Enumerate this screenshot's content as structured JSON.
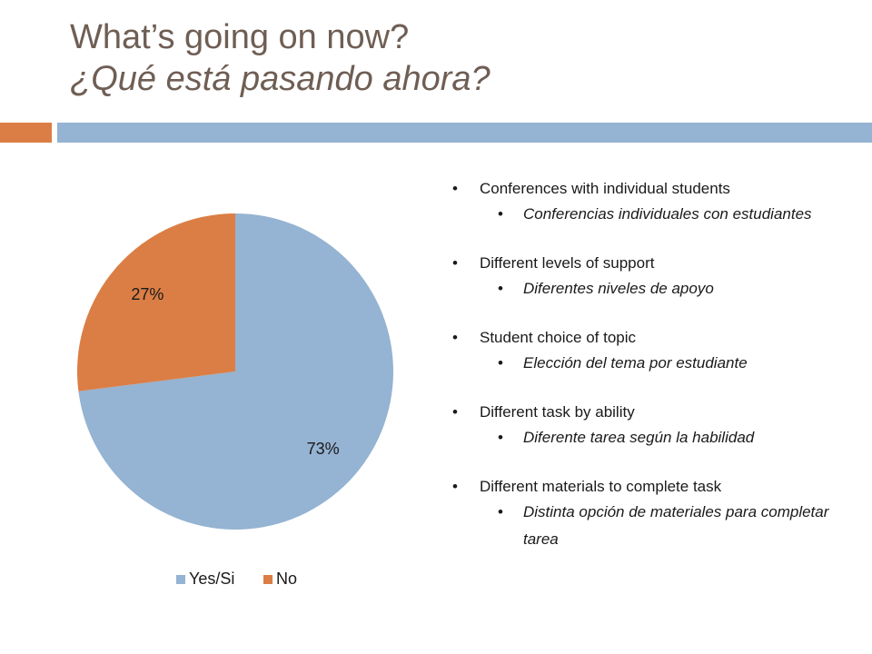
{
  "slide": {
    "title_line1": "What’s going on now?",
    "title_line2": "¿Qué está pasando ahora?"
  },
  "colors": {
    "yes": "#95b3d2",
    "no": "#db7e45",
    "title": "#6f5e54"
  },
  "bullets": [
    {
      "en": "Conferences with individual students",
      "es": "Conferencias individuales con estudiantes"
    },
    {
      "en": "Different levels of support",
      "es": "Diferentes niveles de apoyo"
    },
    {
      "en": "Student choice of topic",
      "es": "Elección del tema por estudiante"
    },
    {
      "en": "Different task by ability",
      "es": "Diferente tarea según la habilidad"
    },
    {
      "en": "Different materials to complete task",
      "es": "Distinta opción de materiales para completar tarea"
    }
  ],
  "chart_data": {
    "type": "pie",
    "title": "",
    "categories": [
      "Yes/Si",
      "No"
    ],
    "values": [
      73,
      27
    ],
    "labels": [
      "73%",
      "27%"
    ],
    "legend_position": "bottom"
  }
}
